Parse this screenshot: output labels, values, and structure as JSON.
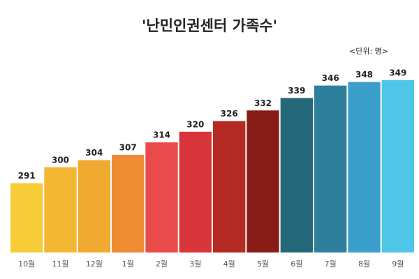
{
  "chart_data": {
    "type": "bar",
    "title": "'난민인권센터 가족수'",
    "subtitle": "<단위: 명>",
    "categories": [
      "10월",
      "11월",
      "12월",
      "1월",
      "2월",
      "3월",
      "4월",
      "5월",
      "6월",
      "7월",
      "8월",
      "9월"
    ],
    "values": [
      291,
      300,
      304,
      307,
      314,
      320,
      326,
      332,
      339,
      346,
      348,
      349
    ],
    "colors": [
      "#f5cb38",
      "#f3b733",
      "#f1aa30",
      "#ee8b33",
      "#e84b49",
      "#d8353a",
      "#b52a22",
      "#8a1c18",
      "#25687a",
      "#2e7f9c",
      "#3a9fca",
      "#4fc6e8"
    ],
    "ylim": [
      252,
      360
    ]
  }
}
